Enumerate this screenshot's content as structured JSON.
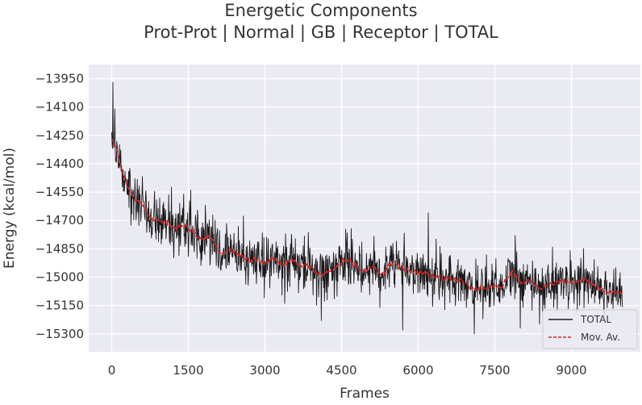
{
  "chart_data": {
    "type": "line",
    "title": "Energetic Components",
    "subtitle": "Prot-Prot | Normal | GB | Receptor | TOTAL",
    "xlabel": "Frames",
    "ylabel": "Energy (kcal/mol)",
    "xlim": [
      -450,
      10350
    ],
    "ylim": [
      -15395,
      -13875
    ],
    "xticks": [
      0,
      1500,
      3000,
      4500,
      6000,
      7500,
      9000
    ],
    "xtick_labels": [
      "0",
      "1500",
      "3000",
      "4500",
      "6000",
      "7500",
      "9000"
    ],
    "yticks": [
      -13950,
      -14100,
      -14250,
      -14400,
      -14550,
      -14700,
      -14850,
      -15000,
      -15150,
      -15300
    ],
    "ytick_labels": [
      "−13950",
      "−14100",
      "−14250",
      "−14400",
      "−14550",
      "−14700",
      "−14850",
      "−15000",
      "−15150",
      "−15300"
    ],
    "grid": true,
    "background": "#eaeaf2",
    "legend_position": "lower-right",
    "series": [
      {
        "name": "TOTAL",
        "color": "#1a1a1a",
        "style": "solid",
        "x_range": [
          0,
          10000
        ],
        "n_points": 1300,
        "mean_anchors": [
          [
            0,
            -14300
          ],
          [
            100,
            -14380
          ],
          [
            300,
            -14500
          ],
          [
            600,
            -14610
          ],
          [
            900,
            -14690
          ],
          [
            1300,
            -14730
          ],
          [
            1700,
            -14770
          ],
          [
            2100,
            -14850
          ],
          [
            2500,
            -14890
          ],
          [
            3000,
            -14920
          ],
          [
            3500,
            -14930
          ],
          [
            4000,
            -14950
          ],
          [
            4150,
            -15010
          ],
          [
            4300,
            -14940
          ],
          [
            4600,
            -14930
          ],
          [
            5000,
            -14950
          ],
          [
            5300,
            -14960
          ],
          [
            5600,
            -14900
          ],
          [
            5800,
            -14960
          ],
          [
            6200,
            -14990
          ],
          [
            6600,
            -15020
          ],
          [
            7000,
            -15040
          ],
          [
            7400,
            -15050
          ],
          [
            7700,
            -15020
          ],
          [
            7900,
            -14990
          ],
          [
            8100,
            -15040
          ],
          [
            8500,
            -15040
          ],
          [
            8900,
            -15020
          ],
          [
            9300,
            -15030
          ],
          [
            9700,
            -15060
          ],
          [
            10000,
            -15100
          ]
        ],
        "noise_sd": 70,
        "peaks": [
          [
            20,
            -13970
          ],
          [
            60,
            -14110
          ],
          [
            1550,
            -14540
          ],
          [
            6200,
            -14660
          ],
          [
            7900,
            -14780
          ]
        ],
        "troughs": [
          [
            5700,
            -15280
          ],
          [
            7100,
            -15300
          ],
          [
            8000,
            -15270
          ],
          [
            4100,
            -15230
          ]
        ]
      },
      {
        "name": "Mov. Av.",
        "color": "#d62728",
        "style": "dashed",
        "x_range": [
          0,
          10000
        ],
        "window": 25
      }
    ]
  }
}
